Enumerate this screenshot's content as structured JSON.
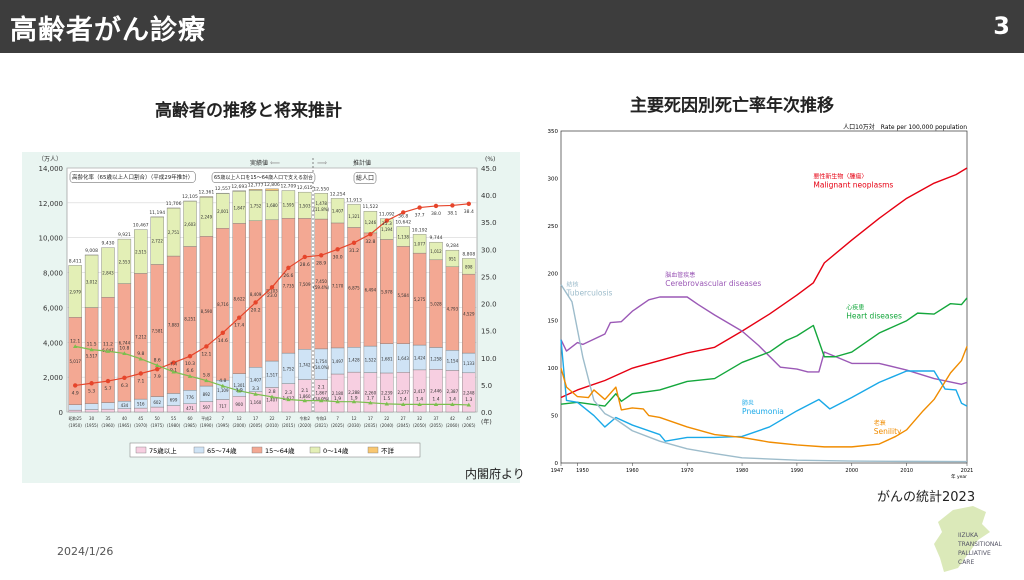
{
  "header": {
    "title": "高齢者がん診療",
    "page_number": "3"
  },
  "left": {
    "title": "高齢者の推移と将来推計",
    "source": "内閣府より"
  },
  "right": {
    "title": "主要死因別死亡率年次推移",
    "source": "がんの統計2023"
  },
  "footer": {
    "date": "2024/1/26",
    "logo_lines": [
      "IIZUKA",
      "TRANSITIONAL",
      "PALLIATIVE",
      "CARE"
    ]
  },
  "chart_data": [
    {
      "type": "bar",
      "stacked": true,
      "ylabel": "（万人）",
      "y2label": "(%)",
      "xunit": "(年)",
      "ylim": [
        0,
        14000
      ],
      "y2lim": [
        0,
        45
      ],
      "yticks": [
        "0",
        "2,000",
        "4,000",
        "6,000",
        "8,000",
        "10,000",
        "12,000",
        "14,000"
      ],
      "y2ticks": [
        "0.0",
        "5.0",
        "10.0",
        "15.0",
        "20.0",
        "25.0",
        "30.0",
        "35.0",
        "40.0",
        "45.0"
      ],
      "categories": [
        "昭和25",
        "30",
        "35",
        "40",
        "45",
        "50",
        "55",
        "60",
        "平成2",
        "7",
        "12",
        "17",
        "22",
        "27",
        "令和2",
        "令和3",
        "7",
        "12",
        "17",
        "22",
        "27",
        "32",
        "37",
        "42",
        "47"
      ],
      "categories_year": [
        "(1950)",
        "(1955)",
        "(1960)",
        "(1965)",
        "(1970)",
        "(1975)",
        "(1980)",
        "(1985)",
        "(1990)",
        "(1995)",
        "(2000)",
        "(2005)",
        "(2010)",
        "(2015)",
        "(2020)",
        "(2021)",
        "(2025)",
        "(2030)",
        "(2035)",
        "(2040)",
        "(2045)",
        "(2050)",
        "(2055)",
        "(2060)",
        "(2065)"
      ],
      "totals": [
        8411,
        9008,
        9430,
        9921,
        10467,
        11194,
        11706,
        12105,
        12361,
        12557,
        12693,
        12777,
        12806,
        12709,
        12615,
        12550,
        12254,
        11913,
        11522,
        11092,
        10642,
        10192,
        9744,
        9284,
        8808
      ],
      "series": [
        {
          "name": "75歳以上",
          "color": "#f7cfe1",
          "values": [
            107,
            139,
            164,
            189,
            224,
            284,
            366,
            471,
            597,
            717,
            900,
            1160,
            1407,
            1627,
            1860,
            1867,
            2180,
            2288,
            2260,
            2239,
            2277,
            2417,
            2446,
            2387,
            2248
          ]
        },
        {
          "name": "65～74歳",
          "color": "#cfe3f5",
          "values": [
            309,
            338,
            376,
            434,
            516,
            602,
            699,
            776,
            892,
            1109,
            1301,
            1407,
            1517,
            1752,
            1742,
            1754,
            1497,
            1428,
            1522,
            1681,
            1643,
            1424,
            1258,
            1154,
            1133
          ]
        },
        {
          "name": "15～64歳",
          "color": "#f3a893",
          "values": [
            5017,
            5517,
            6047,
            6744,
            7212,
            7581,
            7883,
            8251,
            8590,
            8716,
            8622,
            8409,
            8103,
            7735,
            7509,
            7450,
            7170,
            6875,
            6494,
            5978,
            5584,
            5275,
            5028,
            4793,
            4529
          ]
        },
        {
          "name": "0～14歳",
          "color": "#e3efb6",
          "values": [
            2979,
            3012,
            2843,
            2553,
            2515,
            2722,
            2751,
            2603,
            2249,
            2001,
            1847,
            1752,
            1680,
            1595,
            1503,
            1478,
            1407,
            1321,
            1246,
            1194,
            1138,
            1077,
            1012,
            951,
            898
          ]
        },
        {
          "name": "不詳",
          "color": "#f9c770",
          "values": [
            0,
            2,
            0,
            0,
            0,
            5,
            7,
            4,
            33,
            13,
            23,
            48,
            98,
            0,
            0,
            0,
            0,
            0,
            0,
            0,
            0,
            0,
            0,
            0,
            0
          ]
        }
      ],
      "lines": [
        {
          "name": "高齢化率（65歳以上人口割合）（平成29年推計）",
          "axis": "right",
          "color": "#e6452b",
          "values": [
            4.9,
            5.3,
            5.7,
            6.3,
            7.1,
            7.9,
            9.1,
            10.3,
            12.1,
            14.6,
            17.4,
            20.2,
            23.0,
            26.6,
            28.6,
            28.9,
            30.0,
            31.2,
            32.8,
            35.3,
            36.8,
            37.7,
            38.0,
            38.1,
            38.4
          ]
        },
        {
          "name": "65歳以上人口を15～64歳人口で支える割合",
          "axis": "right",
          "color": "#7cbf4e",
          "values": [
            12.1,
            11.5,
            11.2,
            10.8,
            9.8,
            8.6,
            7.4,
            6.6,
            5.8,
            4.8,
            3.9,
            3.3,
            2.8,
            2.3,
            2.1,
            2.1,
            1.9,
            1.9,
            1.7,
            1.5,
            1.4,
            1.4,
            1.4,
            1.4,
            1.3
          ]
        }
      ],
      "annotations": {
        "actual": "実績値",
        "projected": "推計値",
        "total_label": "総人口",
        "share_2021_15_64": "(59.4%)",
        "share_2021_0_14": "(11.8%)",
        "share_2021_65_74": "(14.0%)",
        "share_2021_75": "(14.9%)"
      },
      "legend": "bottom"
    },
    {
      "type": "line",
      "ylabel": "人口10万対　Rate per 100,000 population",
      "xunit": "年 year",
      "ylim": [
        0,
        350
      ],
      "xlim": [
        1947,
        2021
      ],
      "yticks": [
        0,
        50,
        100,
        150,
        200,
        250,
        300,
        350
      ],
      "xticks": [
        1947,
        1950,
        1960,
        1970,
        1980,
        1990,
        2000,
        2010,
        2021
      ],
      "series": [
        {
          "name": "悪性新生物〈腫瘍〉",
          "name_en": "Malignant neoplasms",
          "color": "#e60012",
          "points": [
            [
              1947,
              69
            ],
            [
              1950,
              77
            ],
            [
              1955,
              87
            ],
            [
              1960,
              100
            ],
            [
              1965,
              108
            ],
            [
              1970,
              116
            ],
            [
              1975,
              122
            ],
            [
              1980,
              139
            ],
            [
              1985,
              157
            ],
            [
              1990,
              177
            ],
            [
              1993,
              190
            ],
            [
              1995,
              211
            ],
            [
              2000,
              235
            ],
            [
              2005,
              258
            ],
            [
              2010,
              279
            ],
            [
              2015,
              295
            ],
            [
              2019,
              304
            ],
            [
              2021,
              311
            ]
          ]
        },
        {
          "name": "脳血管疾患",
          "name_en": "Cerebrovascular diseases",
          "color": "#9b59b6",
          "points": [
            [
              1947,
              130
            ],
            [
              1948,
              118
            ],
            [
              1950,
              127
            ],
            [
              1951,
              125
            ],
            [
              1955,
              136
            ],
            [
              1956,
              148
            ],
            [
              1958,
              149
            ],
            [
              1960,
              160
            ],
            [
              1963,
              172
            ],
            [
              1965,
              175
            ],
            [
              1970,
              175
            ],
            [
              1972,
              167
            ],
            [
              1975,
              156
            ],
            [
              1980,
              139
            ],
            [
              1983,
              124
            ],
            [
              1987,
              101
            ],
            [
              1990,
              99
            ],
            [
              1992,
              96
            ],
            [
              1994,
              96
            ],
            [
              1995,
              117
            ],
            [
              2000,
              105
            ],
            [
              2005,
              105
            ],
            [
              2010,
              98
            ],
            [
              2015,
              89
            ],
            [
              2020,
              83
            ],
            [
              2021,
              85
            ]
          ]
        },
        {
          "name": "心疾患",
          "name_en": "Heart diseases",
          "color": "#14a73c",
          "points": [
            [
              1947,
              62
            ],
            [
              1950,
              64
            ],
            [
              1955,
              60
            ],
            [
              1957,
              73
            ],
            [
              1958,
              65
            ],
            [
              1960,
              73
            ],
            [
              1965,
              77
            ],
            [
              1970,
              86
            ],
            [
              1975,
              89
            ],
            [
              1980,
              106
            ],
            [
              1985,
              117
            ],
            [
              1988,
              129
            ],
            [
              1990,
              134
            ],
            [
              1993,
              145
            ],
            [
              1995,
              112
            ],
            [
              1997,
              112
            ],
            [
              2000,
              117
            ],
            [
              2005,
              137
            ],
            [
              2010,
              150
            ],
            [
              2012,
              158
            ],
            [
              2015,
              157
            ],
            [
              2018,
              168
            ],
            [
              2020,
              167
            ],
            [
              2021,
              174
            ]
          ]
        },
        {
          "name": "肺炎",
          "name_en": "Pneumonia",
          "color": "#1aa9e8",
          "points": [
            [
              1947,
              130
            ],
            [
              1948,
              66
            ],
            [
              1950,
              64
            ],
            [
              1953,
              50
            ],
            [
              1955,
              38
            ],
            [
              1957,
              48
            ],
            [
              1960,
              40
            ],
            [
              1965,
              30
            ],
            [
              1966,
              23
            ],
            [
              1970,
              27
            ],
            [
              1975,
              27
            ],
            [
              1980,
              28
            ],
            [
              1985,
              38
            ],
            [
              1990,
              55
            ],
            [
              1994,
              67
            ],
            [
              1996,
              57
            ],
            [
              2000,
              69
            ],
            [
              2005,
              85
            ],
            [
              2010,
              97
            ],
            [
              2015,
              97
            ],
            [
              2017,
              78
            ],
            [
              2019,
              77
            ],
            [
              2020,
              63
            ],
            [
              2021,
              60
            ]
          ]
        },
        {
          "name": "結核",
          "name_en": "Tuberculosis",
          "color": "#9dbccb",
          "points": [
            [
              1947,
              188
            ],
            [
              1949,
              170
            ],
            [
              1951,
              111
            ],
            [
              1953,
              66
            ],
            [
              1955,
              52
            ],
            [
              1957,
              46
            ],
            [
              1960,
              34
            ],
            [
              1965,
              23
            ],
            [
              1970,
              15
            ],
            [
              1975,
              10
            ],
            [
              1980,
              5.5
            ],
            [
              1990,
              3
            ],
            [
              2000,
              2
            ],
            [
              2010,
              1.7
            ],
            [
              2021,
              1.5
            ]
          ]
        },
        {
          "name": "老衰",
          "name_en": "Senility",
          "color": "#f08c00",
          "points": [
            [
              1947,
              100
            ],
            [
              1948,
              80
            ],
            [
              1950,
              70
            ],
            [
              1952,
              69
            ],
            [
              1953,
              77
            ],
            [
              1955,
              67
            ],
            [
              1957,
              80
            ],
            [
              1958,
              56
            ],
            [
              1960,
              58
            ],
            [
              1962,
              57
            ],
            [
              1963,
              50
            ],
            [
              1965,
              48
            ],
            [
              1970,
              38
            ],
            [
              1975,
              30
            ],
            [
              1980,
              27
            ],
            [
              1985,
              22
            ],
            [
              1990,
              19
            ],
            [
              1995,
              17
            ],
            [
              2000,
              17
            ],
            [
              2005,
              20
            ],
            [
              2008,
              28
            ],
            [
              2010,
              35
            ],
            [
              2013,
              55
            ],
            [
              2015,
              67
            ],
            [
              2018,
              95
            ],
            [
              2020,
              108
            ],
            [
              2021,
              123
            ]
          ]
        }
      ]
    }
  ]
}
